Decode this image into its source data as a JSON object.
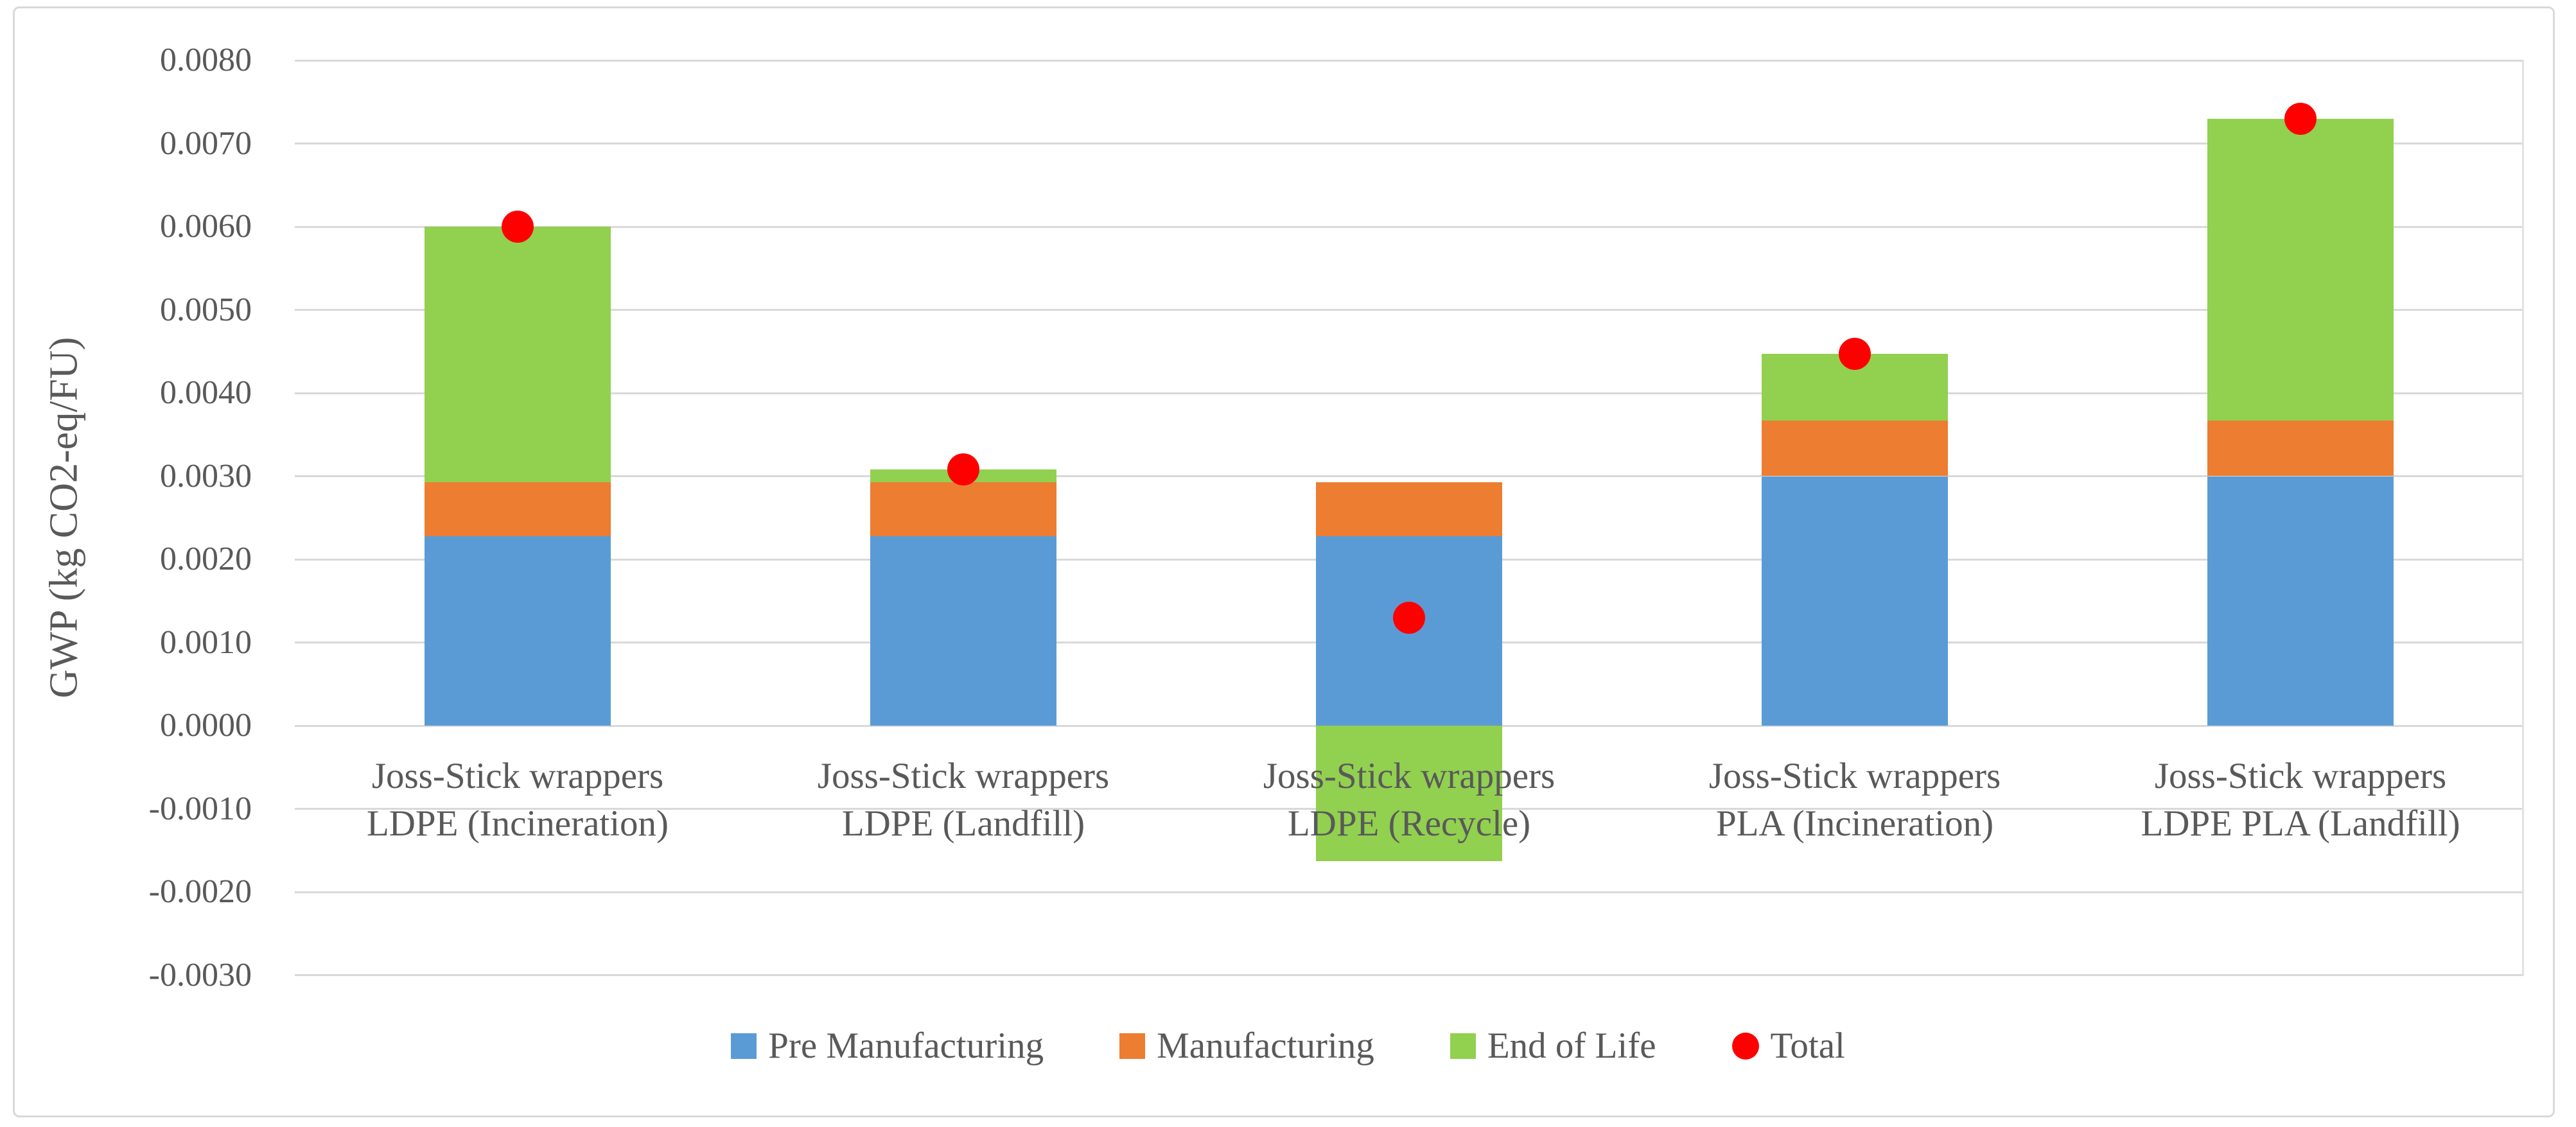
{
  "axis_title": "GWP (kg CO2-eq/FU)",
  "legend": [
    {
      "label": "Pre Manufacturing",
      "color": "#5B9BD5",
      "marker": "square"
    },
    {
      "label": "Manufacturing",
      "color": "#ED7D31",
      "marker": "square"
    },
    {
      "label": "End of Life",
      "color": "#92D050",
      "marker": "square"
    },
    {
      "label": "Total",
      "color": "#FF0000",
      "marker": "circle"
    }
  ],
  "colors": {
    "pre_manufacturing": "#5B9BD5",
    "manufacturing": "#ED7D31",
    "end_of_life": "#92D050",
    "total": "#FF0000",
    "gridline": "#D9D9D9",
    "text": "#595959"
  },
  "chart_data": {
    "type": "bar",
    "stacked": true,
    "title": "",
    "xlabel": "",
    "ylabel": "GWP (kg CO2-eq/FU)",
    "ylim": [
      -0.003,
      0.008
    ],
    "ytick_step": 0.001,
    "ytick_decimals": 4,
    "grid": true,
    "legend_position": "bottom",
    "categories": [
      [
        "Joss-Stick wrappers",
        "LDPE (Incineration)"
      ],
      [
        "Joss-Stick wrappers",
        "LDPE (Landfill)"
      ],
      [
        "Joss-Stick wrappers",
        "LDPE (Recycle)"
      ],
      [
        "Joss-Stick wrappers",
        "PLA (Incineration)"
      ],
      [
        "Joss-Stick wrappers",
        "LDPE PLA (Landfill)"
      ]
    ],
    "series": [
      {
        "name": "Pre Manufacturing",
        "color": "#5B9BD5",
        "values": [
          0.00228,
          0.00228,
          0.00228,
          0.003,
          0.003
        ]
      },
      {
        "name": "Manufacturing",
        "color": "#ED7D31",
        "values": [
          0.00065,
          0.00065,
          0.00065,
          0.00067,
          0.00067
        ]
      },
      {
        "name": "End of Life",
        "color": "#92D050",
        "values": [
          0.00307,
          0.00015,
          -0.00163,
          0.0008,
          0.00363
        ]
      }
    ],
    "points_series": {
      "name": "Total",
      "color": "#FF0000",
      "marker": "circle",
      "values": [
        0.006,
        0.00308,
        0.0013,
        0.00447,
        0.0073
      ]
    }
  }
}
